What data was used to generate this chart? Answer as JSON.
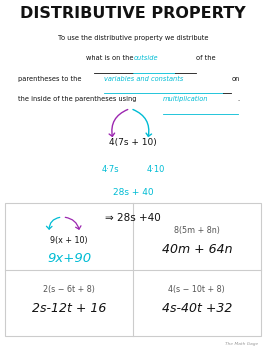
{
  "title": "DISTRIBUTIVE PROPERTY",
  "bg_color": "#ffffff",
  "cyan_color": "#00bcd4",
  "purple_color": "#9c27b0",
  "black_color": "#111111",
  "gray_color": "#888888",
  "grid_color": "#cccccc",
  "example_expression": "4(7s + 10)",
  "example_step1a": "4·7s",
  "example_step1b": "4·10",
  "example_step2": "28s + 40",
  "example_final": "⇒ 28s +40",
  "box1_problem": "9(x + 10)",
  "box1_answer": "9x+90",
  "box2_problem": "8(5m + 8n)",
  "box2_answer": "40m + 64n",
  "box3_problem": "2(s − 6t + 8)",
  "box3_answer": "2s-12t + 16",
  "box4_problem": "4(s − 10t + 8)",
  "box4_answer": "4s-40t +32",
  "credit": "The Math Gage",
  "figw": 2.66,
  "figh": 3.5,
  "dpi": 100
}
